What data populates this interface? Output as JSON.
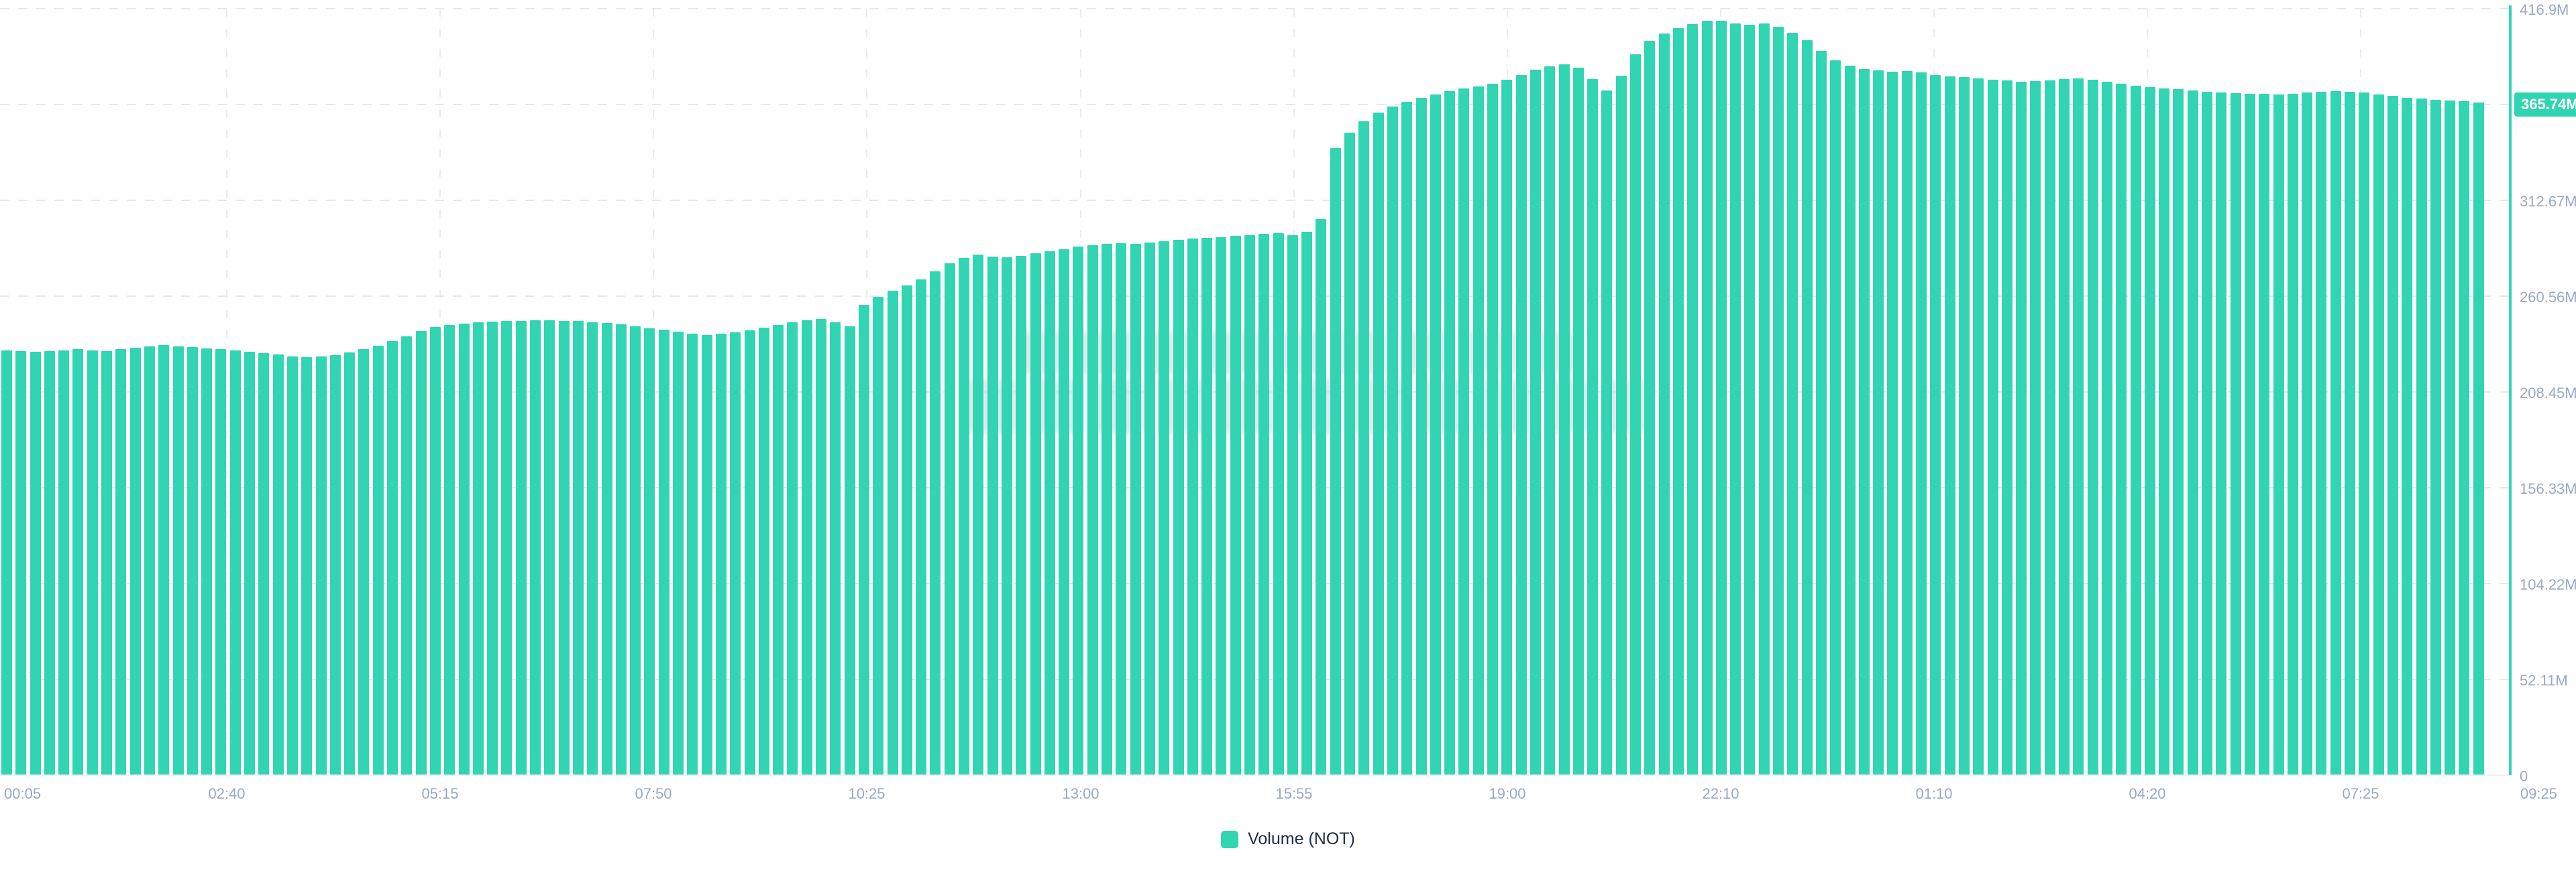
{
  "chart_data": {
    "type": "bar",
    "title": "",
    "xlabel": "",
    "ylabel": "",
    "unit": "M NOT",
    "grid": true,
    "legend_position": "bottom",
    "bar_color": "#31d5b2",
    "axis_label_color": "#9ba7c9",
    "legend": [
      {
        "label": "Volume (NOT)",
        "color": "#31d5b2"
      }
    ],
    "current_value_label": "365.74M",
    "y_max": 416.9,
    "y_tick_step": 52.11,
    "y_ticks": [
      {
        "label": "416.9M",
        "value": 416.9
      },
      {
        "label": "312.67M",
        "value": 312.67
      },
      {
        "label": "260.56M",
        "value": 260.56
      },
      {
        "label": "208.45M",
        "value": 208.45
      },
      {
        "label": "156.33M",
        "value": 156.33
      },
      {
        "label": "104.22M",
        "value": 104.22
      },
      {
        "label": "52.11M",
        "value": 52.11
      },
      {
        "label": "0",
        "value": 0
      }
    ],
    "x_tick_labels": [
      "00:05",
      "02:40",
      "05:15",
      "07:50",
      "10:25",
      "13:00",
      "15:55",
      "19:00",
      "22:10",
      "01:10",
      "04:20",
      "07:25",
      "09:25"
    ],
    "series": [
      {
        "name": "Volume (NOT)",
        "values": [
          231,
          230.6,
          230.2,
          230.8,
          231.2,
          231.6,
          231.2,
          230.8,
          231.8,
          232.4,
          233.2,
          233.8,
          233.4,
          232.8,
          232.2,
          231.6,
          231,
          230.4,
          229.6,
          228.8,
          227.8,
          227.4,
          227.6,
          228.4,
          229.8,
          231.6,
          233.6,
          236,
          238.8,
          241.6,
          243.8,
          245,
          245.8,
          246.3,
          246.6,
          246.9,
          247.1,
          247.3,
          247.4,
          247.2,
          246.9,
          246.5,
          246,
          245.2,
          244.2,
          243.2,
          242.2,
          241.2,
          240.3,
          239.6,
          240,
          240.8,
          241.8,
          243.4,
          245,
          246.4,
          247.6,
          248,
          246.4,
          244,
          256,
          260.3,
          263.4,
          266.4,
          269.5,
          274,
          278.5,
          281.5,
          283.2,
          282.2,
          281.6,
          282.6,
          283.8,
          285,
          286.2,
          287.4,
          288.4,
          289,
          289.3,
          289,
          289.6,
          290.4,
          291.2,
          291.8,
          292.3,
          292.8,
          293.3,
          293.8,
          294.3,
          294.8,
          293.6,
          295.4,
          302.5,
          341,
          349.5,
          355.5,
          360.5,
          363.8,
          366.3,
          368.4,
          370.3,
          372,
          373.5,
          374.8,
          376.2,
          378.4,
          381,
          383.6,
          385.4,
          386.6,
          385,
          378.5,
          372.5,
          380.5,
          392,
          399.5,
          403.5,
          406.5,
          408.6,
          410.5,
          410.2,
          408.8,
          408.2,
          408.8,
          407,
          403.8,
          399.6,
          393.8,
          388.8,
          386,
          384.2,
          383.2,
          382.6,
          383,
          382.2,
          381,
          380.2,
          379.6,
          379,
          378.4,
          377.8,
          377.2,
          377.4,
          378,
          378.6,
          379,
          378.4,
          377.2,
          376,
          375,
          374.2,
          373.6,
          373,
          372.4,
          371.8,
          371.4,
          371,
          370.8,
          370.6,
          370.4,
          370.6,
          371.2,
          371.8,
          372.2,
          371.8,
          371.2,
          370.4,
          369.4,
          368.6,
          368,
          367.4,
          367,
          366.6,
          365.74
        ]
      }
    ]
  }
}
